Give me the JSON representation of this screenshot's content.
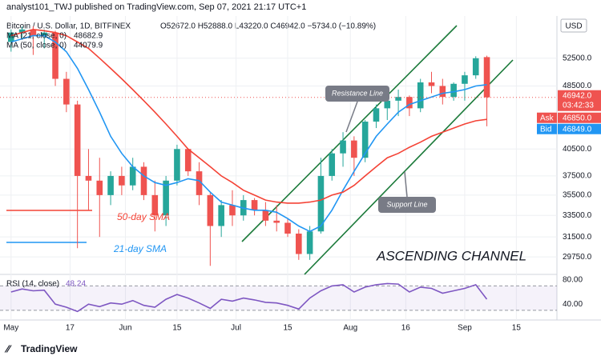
{
  "header": {
    "publisher": "analyst101_TWJ published on TradingView.com, Sep 07, 2021 21:17 UTC+1",
    "symbol": "Bitcoin / U.S. Dollar, 1D, BITFINEX",
    "ohlc": "O52672.0 H52888.0 L43220.0 C46942.0 −5734.0 (−10.89%)"
  },
  "currency": "USD",
  "price_tags": {
    "last": "46942.0",
    "countdown": "03:42:33",
    "ask_label": "Ask",
    "ask": "46850.0",
    "bid_label": "Bid",
    "bid": "46849.0"
  },
  "footer": "TradingView",
  "chart_data": [
    {
      "type": "candlestick",
      "log_scale": true,
      "grid": true,
      "up_color": "#26a69a",
      "down_color": "#ef5350",
      "x": [
        0,
        3,
        6,
        9,
        12,
        15,
        18,
        21,
        24,
        27,
        30,
        33,
        36,
        39,
        42,
        45,
        48,
        51,
        54,
        57,
        60,
        63,
        66,
        69,
        72,
        75,
        78,
        81,
        84,
        87,
        90,
        93,
        96,
        99,
        102,
        105,
        108,
        111,
        114,
        117,
        120,
        123,
        126,
        129
      ],
      "open": [
        55000,
        56500,
        57000,
        56000,
        56500,
        49500,
        46000,
        37500,
        37000,
        35500,
        37500,
        36500,
        38500,
        35500,
        33500,
        37000,
        40500,
        38000,
        35500,
        32500,
        34500,
        33500,
        35000,
        34000,
        33000,
        32800,
        31800,
        30000,
        32000,
        37500,
        40000,
        41500,
        39500,
        43800,
        45500,
        46500,
        47000,
        45500,
        49000,
        48500,
        47000,
        48800,
        50000,
        52672
      ],
      "high": [
        57000,
        57500,
        57500,
        57000,
        56800,
        50500,
        46500,
        40500,
        39500,
        38000,
        38500,
        39500,
        39000,
        37000,
        37500,
        41000,
        40500,
        39000,
        35800,
        35000,
        36000,
        35500,
        35200,
        34800,
        34500,
        33200,
        32200,
        32500,
        39500,
        40500,
        42500,
        42000,
        44000,
        46000,
        47500,
        48000,
        47200,
        49500,
        50500,
        49500,
        49000,
        50500,
        52800,
        52888
      ],
      "low": [
        53500,
        55500,
        53000,
        54000,
        48500,
        45000,
        30500,
        34000,
        31500,
        34500,
        35500,
        36000,
        35000,
        32000,
        32500,
        36500,
        37500,
        34500,
        29000,
        31500,
        32500,
        33000,
        33500,
        32500,
        32000,
        31500,
        29500,
        29500,
        31800,
        37000,
        38500,
        37500,
        39000,
        43000,
        44000,
        44500,
        44500,
        45000,
        47500,
        46000,
        46500,
        46500,
        49500,
        43220
      ],
      "close": [
        56500,
        57000,
        56000,
        56500,
        49500,
        46000,
        37500,
        37000,
        35500,
        37500,
        36500,
        38500,
        35500,
        33500,
        37000,
        40500,
        38000,
        35500,
        32500,
        34500,
        33500,
        35000,
        34000,
        33000,
        32800,
        31800,
        30000,
        32000,
        37500,
        40000,
        41500,
        39500,
        43800,
        45500,
        46500,
        47000,
        45500,
        49000,
        48500,
        47000,
        48800,
        50000,
        52500,
        46942
      ],
      "series": [
        {
          "name": "MA (21, close, 0)",
          "color": "#2196f3",
          "values": [
            55000,
            55500,
            56000,
            56000,
            55000,
            53500,
            51000,
            48000,
            45000,
            42000,
            40000,
            38500,
            37500,
            36800,
            36500,
            36800,
            37200,
            37000,
            35800,
            34800,
            34500,
            34200,
            34000,
            34000,
            33800,
            33200,
            32500,
            32000,
            32500,
            34000,
            36000,
            38000,
            40000,
            42000,
            43500,
            45000,
            46000,
            46500,
            47000,
            47500,
            47700,
            48000,
            48500,
            48682.9
          ]
        },
        {
          "name": "MA (50, close, 0)",
          "color": "#f44336",
          "values": [
            56000,
            56500,
            57000,
            56800,
            56500,
            56000,
            55000,
            54000,
            52500,
            51000,
            49500,
            48000,
            46500,
            45000,
            43500,
            42000,
            40500,
            39500,
            38500,
            37500,
            36800,
            36000,
            35500,
            35000,
            34800,
            34700,
            34700,
            34800,
            35000,
            35500,
            35800,
            36500,
            37500,
            38500,
            39500,
            40000,
            40700,
            41300,
            42000,
            42500,
            43000,
            43500,
            43900,
            44079.9
          ]
        }
      ],
      "ylim": [
        28300,
        57900
      ],
      "yticks": [
        {
          "value": 52500,
          "label": "52500.0"
        },
        {
          "value": 48500,
          "label": "48500.0"
        },
        {
          "value": 40500,
          "label": "40500.0"
        },
        {
          "value": 37500,
          "label": "37500.0"
        },
        {
          "value": 35500,
          "label": "35500.0"
        },
        {
          "value": 33500,
          "label": "33500.0"
        },
        {
          "value": 31500,
          "label": "31500.0"
        },
        {
          "value": 29750,
          "label": "29750.0"
        }
      ],
      "xlim": [
        -3,
        148
      ],
      "xticks": [
        {
          "value": 0,
          "label": "May"
        },
        {
          "value": 16,
          "label": "17"
        },
        {
          "value": 31,
          "label": "Jun"
        },
        {
          "value": 45,
          "label": "15"
        },
        {
          "value": 61,
          "label": "Jul"
        },
        {
          "value": 75,
          "label": "15"
        },
        {
          "value": 92,
          "label": "Aug"
        },
        {
          "value": 107,
          "label": "16"
        },
        {
          "value": 123,
          "label": "Sep"
        },
        {
          "value": 137,
          "label": "15"
        }
      ],
      "annotations": [
        "Resistance Line",
        "Support Line",
        "50-day SMA",
        "21-day SMA",
        "ASCENDING CHANNEL"
      ]
    },
    {
      "type": "line",
      "x": [
        0,
        3,
        6,
        9,
        12,
        15,
        18,
        21,
        24,
        27,
        30,
        33,
        36,
        39,
        42,
        45,
        48,
        51,
        54,
        57,
        60,
        63,
        66,
        69,
        72,
        75,
        78,
        81,
        84,
        87,
        90,
        93,
        96,
        99,
        102,
        105,
        108,
        111,
        114,
        117,
        120,
        123,
        126,
        129
      ],
      "series": [
        {
          "name": "RSI (14, close)",
          "color": "#7e57c2",
          "values": [
            60,
            65,
            62,
            63,
            40,
            35,
            28,
            40,
            36,
            42,
            40,
            46,
            38,
            35,
            48,
            56,
            50,
            42,
            33,
            48,
            45,
            50,
            47,
            43,
            42,
            38,
            32,
            50,
            62,
            70,
            72,
            60,
            68,
            72,
            74,
            73,
            60,
            68,
            66,
            58,
            62,
            66,
            72,
            48.24
          ]
        }
      ],
      "levels": [
        30,
        70
      ],
      "ylim": [
        14,
        85
      ],
      "yticks": [
        {
          "value": 80,
          "label": "80.00"
        },
        {
          "value": 40,
          "label": "40.00"
        }
      ],
      "xlim": [
        -3,
        148
      ]
    }
  ]
}
